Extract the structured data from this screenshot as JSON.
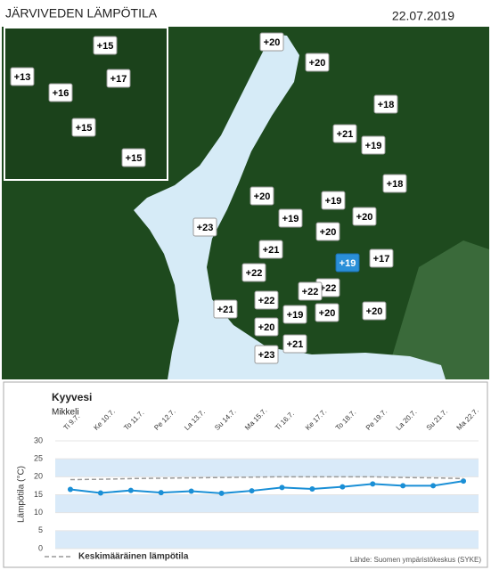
{
  "header": {
    "title": "JÄRVIVEDEN LÄMPÖTILA",
    "date": "22.07.2019"
  },
  "map": {
    "markers": [
      {
        "label": "+15"
      },
      {
        "label": "+13"
      },
      {
        "label": "+17"
      },
      {
        "label": "+16"
      },
      {
        "label": "+15"
      },
      {
        "label": "+15"
      },
      {
        "label": "+20"
      },
      {
        "label": "+20"
      },
      {
        "label": "+18"
      },
      {
        "label": "+21"
      },
      {
        "label": "+19"
      },
      {
        "label": "+18"
      },
      {
        "label": "+20"
      },
      {
        "label": "+19"
      },
      {
        "label": "+19"
      },
      {
        "label": "+20"
      },
      {
        "label": "+23"
      },
      {
        "label": "+20"
      },
      {
        "label": "+21"
      },
      {
        "label": "+17"
      },
      {
        "label": "+19",
        "selected": true
      },
      {
        "label": "+22"
      },
      {
        "label": "+22"
      },
      {
        "label": "+22"
      },
      {
        "label": "+22"
      },
      {
        "label": "+21"
      },
      {
        "label": "+19"
      },
      {
        "label": "+20"
      },
      {
        "label": "+20"
      },
      {
        "label": "+20"
      },
      {
        "label": "+21"
      },
      {
        "label": "+23"
      }
    ]
  },
  "chart_data": {
    "type": "line",
    "title": "Kyyvesi",
    "subtitle": "Mikkeli",
    "y_label": "Lämpötila (°C)",
    "categories": [
      "Ti 9.7.",
      "Ke 10.7.",
      "To 11.7.",
      "Pe 12.7.",
      "La 13.7.",
      "Su 14.7.",
      "Ma 15.7.",
      "Ti 16.7.",
      "Ke 17.7.",
      "To 18.7.",
      "Pe 19.7.",
      "La 20.7.",
      "Su 21.7.",
      "Ma 22.7."
    ],
    "ylim": [
      0,
      30
    ],
    "yticks": [
      0,
      5,
      10,
      15,
      20,
      25,
      30
    ],
    "series": [
      {
        "color": "#1a8fd6",
        "values": [
          16.5,
          15.5,
          16.2,
          15.6,
          16,
          15.4,
          16.1,
          17,
          16.6,
          17.2,
          18,
          17.5,
          17.5,
          18.8
        ]
      },
      {
        "name": "Keskimääräinen lämpötila",
        "color": "#999999",
        "dashed": true,
        "values": [
          19.2,
          19.3,
          19.5,
          19.6,
          19.7,
          19.8,
          19.9,
          20,
          20,
          20,
          20,
          19.8,
          19.7,
          19.5
        ]
      }
    ],
    "source": "Lähde: Suomen ympäristökeskus (SYKE)"
  }
}
